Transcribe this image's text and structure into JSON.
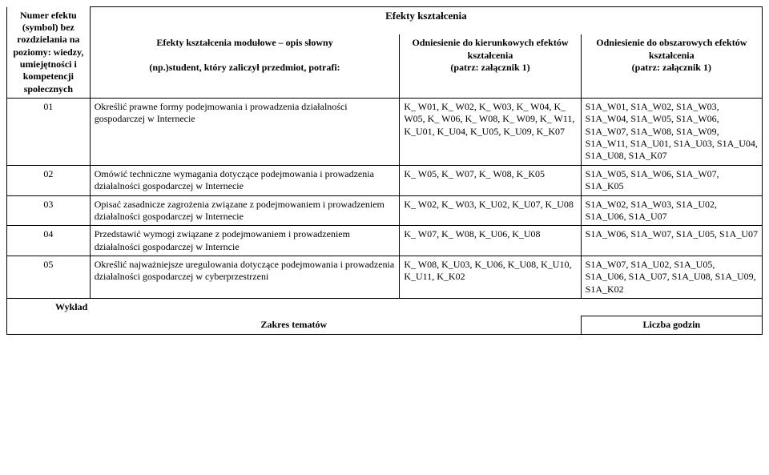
{
  "title": "Efekty kształcenia",
  "headers": {
    "col1": "Numer efektu (symbol) bez rozdzielania na poziomy: wiedzy, umiejętności i kompetencji społecznych",
    "col2_line1": "Efekty kształcenia modułowe – opis słowny",
    "col2_line2": "(np.)student, który zaliczył przedmiot, potrafi:",
    "col3_line1": "Odniesienie do kierunkowych efektów kształcenia",
    "col3_line2": "(patrz: załącznik 1)",
    "col4_line1": "Odniesienie do obszarowych efektów kształcenia",
    "col4_line2": "(patrz: załącznik 1)"
  },
  "rows": [
    {
      "num": "01",
      "desc": "Określić prawne formy podejmowania i prowadzenia działalności gospodarczej w Internecie",
      "ref1": "K_ W01, K_ W02, K_ W03, K_ W04, K_ W05, K_ W06, K_ W08, K_ W09, K_ W11, K_U01, K_U04, K_U05, K_U09, K_K07",
      "ref2": "S1A_W01, S1A_W02, S1A_W03, S1A_W04, S1A_W05, S1A_W06, S1A_W07, S1A_W08, S1A_W09, S1A_W11, S1A_U01, S1A_U03, S1A_U04, S1A_U08, S1A_K07"
    },
    {
      "num": "02",
      "desc": "Omówić techniczne wymagania dotyczące podejmowania i prowadzenia działalności gospodarczej w Internecie",
      "ref1": "K_ W05, K_ W07, K_ W08, K_K05",
      "ref2": "S1A_W05, S1A_W06, S1A_W07, S1A_K05"
    },
    {
      "num": "03",
      "desc": "Opisać zasadnicze zagrożenia związane z podejmowaniem i prowadzeniem działalności gospodarczej w Internecie",
      "ref1": "K_ W02, K_ W03, K_U02, K_U07, K_U08",
      "ref2": "S1A_W02, S1A_W03, S1A_U02, S1A_U06, S1A_U07"
    },
    {
      "num": "04",
      "desc": "Przedstawić wymogi związane z podejmowaniem i prowadzeniem działalności gospodarczej w Interncie",
      "ref1": "K_ W07, K_ W08, K_U06, K_U08",
      "ref2": "S1A_W06, S1A_W07, S1A_U05, S1A_U07"
    },
    {
      "num": "05",
      "desc": "Określić najważniejsze uregulowania dotyczące podejmowania i prowadzenia działalności gospodarczej w cyberprzestrzeni",
      "ref1": "K_ W08, K_U03, K_U06, K_U08, K_U10, K_U11, K_K02",
      "ref2": "S1A_W07, S1A_U02, S1A_U05, S1A_U06, S1A_U07, S1A_U08, S1A_U09, S1A_K02"
    }
  ],
  "footer": {
    "wyklad": "Wykład",
    "zakres": "Zakres tematów",
    "liczba": "Liczba godzin"
  }
}
